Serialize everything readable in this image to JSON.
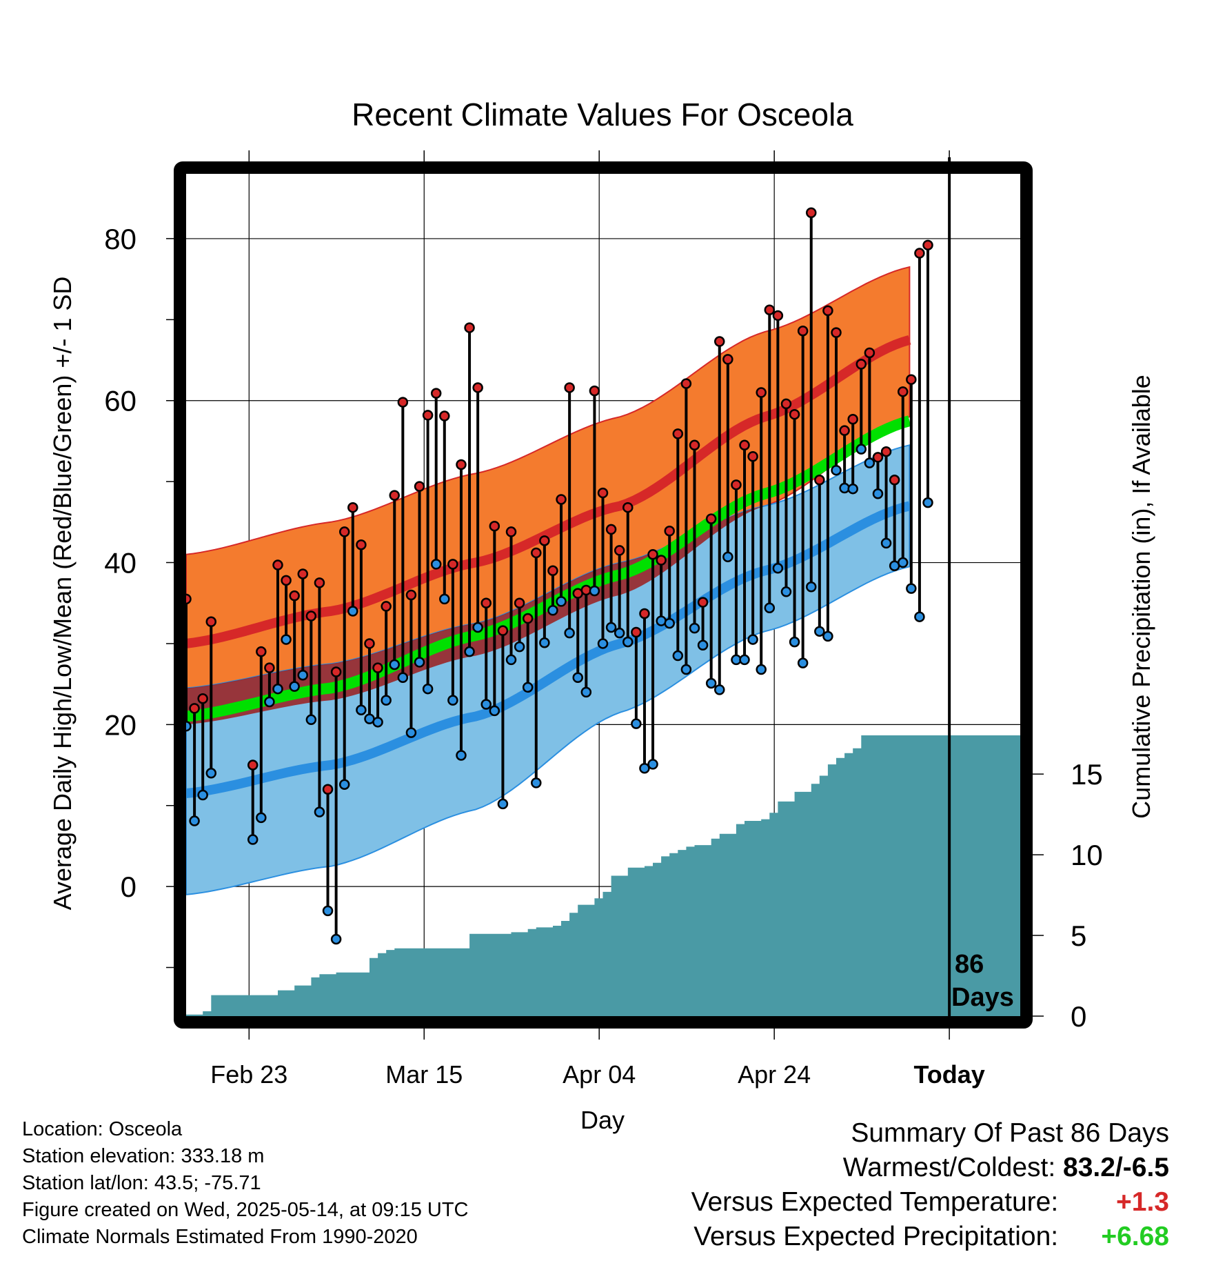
{
  "chart_data": {
    "type": "line",
    "title": "Recent Climate Values For Osceola",
    "xlabel": "Day",
    "ylabel_left": "Average Daily High/Low/Mean (Red/Blue/Green) +/- 1 SD",
    "ylabel_right": "Cumulative Precipitation (in), If Available",
    "x_tick_labels": [
      "Feb 23",
      "Mar 15",
      "Apr 04",
      "Apr 24",
      "Today"
    ],
    "y_left_ticks": [
      0,
      20,
      40,
      60,
      80
    ],
    "y_left_range": [
      -16,
      88
    ],
    "y_right_ticks": [
      0,
      5,
      10,
      15
    ],
    "y_right_range": [
      0,
      17.4
    ],
    "today_marker": {
      "line1": "86",
      "line2": "Days"
    },
    "grid": true,
    "normals": {
      "high_mean_x": [
        0,
        20,
        40,
        60,
        80,
        100
      ],
      "high_mean_y": [
        30,
        34,
        40,
        47,
        58,
        67.5
      ],
      "high_sd_upper": [
        41,
        45,
        51,
        58,
        68.5,
        76.5
      ],
      "high_sd_lower": [
        20,
        23,
        28.5,
        36,
        47,
        58
      ],
      "low_mean_x": [
        0,
        20,
        40,
        60,
        80,
        100
      ],
      "low_mean_y": [
        11.5,
        15,
        21,
        30,
        39,
        47
      ],
      "low_sd_upper": [
        24.5,
        27.5,
        32.5,
        40,
        47,
        54.5
      ],
      "low_sd_lower": [
        -1,
        2.5,
        9.5,
        21.5,
        31.5,
        39.5
      ],
      "mean_y": [
        21,
        24.5,
        31,
        38.5,
        48.5,
        57.5
      ]
    },
    "series": [
      {
        "name": "Daily High",
        "color": "#d62828",
        "x": [
          0,
          1,
          2,
          3,
          8,
          9,
          10,
          11,
          12,
          13,
          14,
          15,
          16,
          17,
          18,
          19,
          20,
          21,
          22,
          23,
          24,
          25,
          26,
          27,
          28,
          29,
          30,
          31,
          32,
          33,
          34,
          35,
          36,
          37,
          38,
          39,
          40,
          41,
          42,
          43,
          44,
          45,
          46,
          47,
          48,
          49,
          50,
          51,
          52,
          53,
          54,
          55,
          56,
          57,
          58,
          59,
          60,
          61,
          62,
          63,
          64,
          65,
          66,
          67,
          68,
          69,
          70,
          71,
          72,
          73,
          74,
          75,
          76,
          77,
          78,
          79,
          80,
          81,
          82,
          83,
          84,
          85,
          86,
          87,
          88,
          89
        ],
        "values": [
          35.5,
          22,
          23.2,
          32.7,
          15,
          29,
          27,
          39.7,
          37.8,
          35.9,
          38.6,
          33.4,
          37.5,
          12,
          26.5,
          43.8,
          46.8,
          42.2,
          30,
          27,
          34.6,
          48.3,
          59.8,
          36,
          49.4,
          58.2,
          60.9,
          58.1,
          39.8,
          52.1,
          69,
          61.6,
          35,
          44.5,
          31.6,
          43.8,
          35,
          33.1,
          41.2,
          42.7,
          39,
          47.8,
          61.6,
          36.2,
          36.6,
          61.2,
          48.6,
          44.1,
          41.5,
          46.8,
          31.4,
          33.7,
          41,
          40.3,
          43.9,
          55.9,
          62.1,
          54.5,
          35.1,
          45.4,
          67.3,
          65.1,
          49.6,
          54.5,
          53.1,
          61,
          71.2,
          70.5,
          59.6,
          58.3,
          68.6,
          83.2,
          50.2,
          71.1,
          68.4,
          56.3,
          57.7,
          64.5,
          65.9,
          53,
          53.7,
          50.2,
          61.1,
          62.6,
          78.2,
          79.2
        ]
      },
      {
        "name": "Daily Low",
        "color": "#2b8fe0",
        "x": [
          0,
          1,
          2,
          3,
          8,
          9,
          10,
          11,
          12,
          13,
          14,
          15,
          16,
          17,
          18,
          19,
          20,
          21,
          22,
          23,
          24,
          25,
          26,
          27,
          28,
          29,
          30,
          31,
          32,
          33,
          34,
          35,
          36,
          37,
          38,
          39,
          40,
          41,
          42,
          43,
          44,
          45,
          46,
          47,
          48,
          49,
          50,
          51,
          52,
          53,
          54,
          55,
          56,
          57,
          58,
          59,
          60,
          61,
          62,
          63,
          64,
          65,
          66,
          67,
          68,
          69,
          70,
          71,
          72,
          73,
          74,
          75,
          76,
          77,
          78,
          79,
          80,
          81,
          82,
          83,
          84,
          85,
          86,
          87,
          88,
          89
        ],
        "values": [
          19.8,
          8.1,
          11.3,
          14,
          5.8,
          8.5,
          22.8,
          24.4,
          30.5,
          24.7,
          26.1,
          20.6,
          9.2,
          -3,
          -6.5,
          12.6,
          34,
          21.8,
          20.7,
          20.3,
          23,
          27.4,
          25.8,
          19,
          27.7,
          24.4,
          39.8,
          35.5,
          23,
          16.2,
          29,
          32,
          22.5,
          21.7,
          10.2,
          28,
          29.6,
          24.6,
          12.8,
          30.1,
          34.1,
          35.2,
          31.3,
          25.8,
          24,
          36.5,
          30,
          32,
          31.3,
          30.2,
          20.1,
          14.6,
          15.1,
          32.8,
          32.5,
          28.5,
          26.8,
          31.9,
          29.8,
          25.1,
          24.3,
          40.7,
          28,
          28,
          30.5,
          26.8,
          34.4,
          39.3,
          36.4,
          30.2,
          27.6,
          37,
          31.5,
          30.9,
          51.4,
          49.2,
          49.1,
          54,
          52.3,
          48.5,
          42.4,
          39.6,
          40,
          36.8,
          33.3,
          47.4
        ]
      },
      {
        "name": "Cumulative Precipitation",
        "color": "#4a9aa5",
        "x": [
          0,
          1,
          2,
          3,
          4,
          5,
          6,
          7,
          8,
          9,
          10,
          11,
          12,
          13,
          14,
          15,
          16,
          17,
          18,
          19,
          20,
          21,
          22,
          23,
          24,
          25,
          26,
          27,
          28,
          29,
          30,
          31,
          32,
          33,
          34,
          35,
          36,
          37,
          38,
          39,
          40,
          41,
          42,
          43,
          44,
          45,
          46,
          47,
          48,
          49,
          50,
          51,
          52,
          53,
          54,
          55,
          56,
          57,
          58,
          59,
          60,
          61,
          62,
          63,
          64,
          65,
          66,
          67,
          68,
          69,
          70,
          71,
          72,
          73,
          74,
          75,
          76,
          77,
          78,
          79,
          80,
          81,
          82,
          83,
          84,
          85,
          86,
          87,
          88,
          89
        ],
        "values": [
          0.1,
          0.1,
          0.3,
          1.3,
          1.3,
          1.3,
          1.3,
          1.3,
          1.3,
          1.3,
          1.3,
          1.6,
          1.6,
          1.9,
          1.9,
          2.4,
          2.6,
          2.6,
          2.7,
          2.7,
          2.7,
          2.7,
          3.6,
          3.9,
          4.1,
          4.2,
          4.2,
          4.2,
          4.2,
          4.2,
          4.2,
          4.2,
          4.2,
          4.2,
          5.1,
          5.1,
          5.1,
          5.1,
          5.1,
          5.2,
          5.2,
          5.4,
          5.5,
          5.5,
          5.6,
          5.9,
          6.4,
          6.9,
          6.9,
          7.3,
          7.7,
          8.7,
          8.7,
          9.2,
          9.2,
          9.3,
          9.5,
          9.9,
          10.1,
          10.3,
          10.5,
          10.6,
          10.6,
          11,
          11.3,
          11.3,
          11.9,
          12.1,
          12.1,
          12.2,
          12.6,
          13.3,
          13.3,
          13.9,
          13.9,
          14.4,
          14.9,
          15.6,
          16,
          16.3,
          16.6,
          17.4,
          17.4,
          17.4,
          17.4,
          17.4,
          17.4,
          17.4,
          17.4,
          17.4
        ]
      }
    ]
  },
  "info": {
    "location": "Location: Osceola",
    "elevation": "Station elevation: 333.18 m",
    "latlon": "Station lat/lon: 43.5; -75.71",
    "created": "Figure created on Wed, 2025-05-14, at 09:15 UTC",
    "normals": "Climate Normals Estimated From 1990-2020"
  },
  "summary": {
    "title": "Summary Of Past 86 Days",
    "warmest_label": "Warmest/Coldest:",
    "warmest_value": "83.2/-6.5",
    "temp_label": "Versus Expected Temperature:",
    "temp_value": "+1.3",
    "temp_color": "#d62828",
    "precip_label": "Versus Expected Precipitation:",
    "precip_value": "+6.68",
    "precip_color": "#22cc22"
  },
  "colors": {
    "high_band": "#f47b2e",
    "high_line": "#d62828",
    "low_band": "#7fc0e6",
    "low_line": "#2b8fe0",
    "mean_line": "#00e000",
    "overlap": "#9b1c1c",
    "precip": "#4a9aa5"
  }
}
